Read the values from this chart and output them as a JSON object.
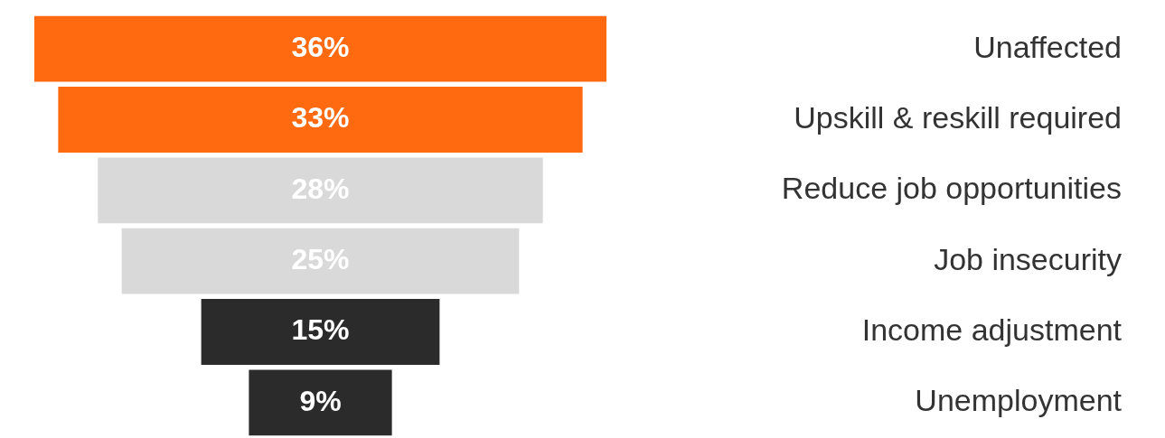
{
  "chart_data": {
    "type": "other",
    "categories": [
      "Unaffected",
      "Upskill & reskill required",
      "Reduce job opportunities",
      "Job insecurity",
      "Income adjustment",
      "Unemployment"
    ],
    "values": [
      36,
      33,
      28,
      25,
      15,
      9
    ],
    "value_labels": [
      "36%",
      "33%",
      "28%",
      "25%",
      "15%",
      "9%"
    ],
    "colors": [
      "#ff6a10",
      "#ff6a10",
      "#d9d9d9",
      "#d9d9d9",
      "#2b2b2b",
      "#2b2b2b"
    ]
  }
}
